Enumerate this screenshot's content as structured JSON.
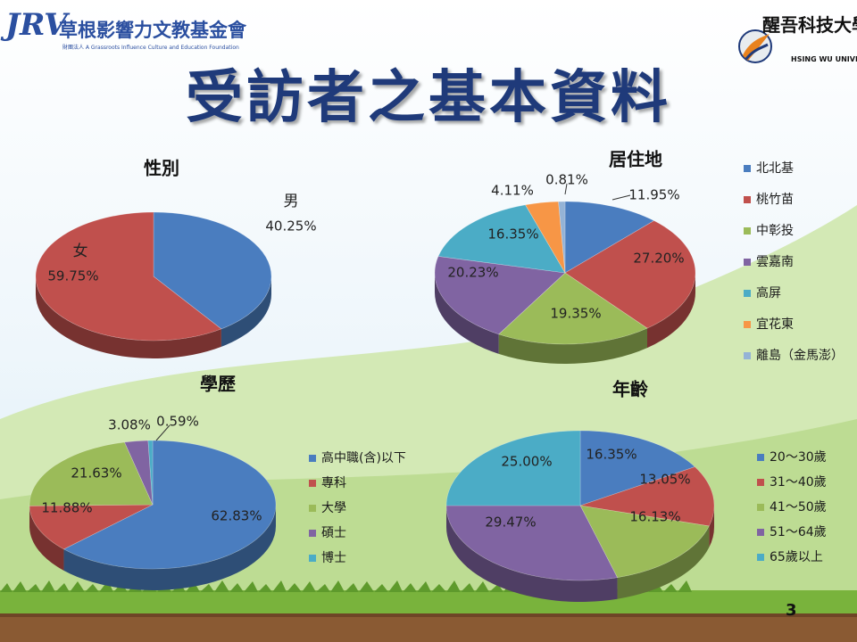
{
  "header": {
    "title": "受訪者之基本資料",
    "logo_left": {
      "mark": "JRV",
      "org_name": "草根影響力文教基金會",
      "org_name_en": "財團法人 A Grassroots Influence Culture and Education Foundation"
    },
    "logo_right": {
      "name": "醒吾科技大學",
      "name_en": "HSING WU UNIVERSITY"
    }
  },
  "page_number": "3",
  "colors": {
    "blue": "#4a7dbf",
    "red": "#c0504d",
    "green": "#9bbb59",
    "purple": "#8064a2",
    "teal": "#4bacc6",
    "orange": "#f79646",
    "light_blue": "#94b3d6"
  },
  "chart_data": [
    {
      "id": "gender",
      "type": "pie",
      "title": "性別",
      "legend": "none",
      "categories": [
        "男",
        "女"
      ],
      "values": [
        40.25,
        59.75
      ],
      "labels": [
        "40.25%",
        "59.75%"
      ],
      "colors": [
        "#4a7dbf",
        "#c0504d"
      ]
    },
    {
      "id": "residence",
      "type": "pie",
      "title": "居住地",
      "legend": "right",
      "categories": [
        "北北基",
        "桃竹苗",
        "中彰投",
        "雲嘉南",
        "高屏",
        "宜花東",
        "離島（金馬澎）"
      ],
      "values": [
        11.95,
        27.2,
        19.35,
        20.23,
        16.35,
        4.11,
        0.81
      ],
      "labels": [
        "11.95%",
        "27.20%",
        "19.35%",
        "20.23%",
        "16.35%",
        "4.11%",
        "0.81%"
      ],
      "colors": [
        "#4a7dbf",
        "#c0504d",
        "#9bbb59",
        "#8064a2",
        "#4bacc6",
        "#f79646",
        "#94b3d6"
      ]
    },
    {
      "id": "education",
      "type": "pie",
      "title": "學歷",
      "legend": "right",
      "categories": [
        "高中職(含)以下",
        "專科",
        "大學",
        "碩士",
        "博士"
      ],
      "values": [
        62.83,
        11.88,
        21.63,
        3.08,
        0.59
      ],
      "labels": [
        "62.83%",
        "11.88%",
        "21.63%",
        "3.08%",
        "0.59%"
      ],
      "colors": [
        "#4a7dbf",
        "#c0504d",
        "#9bbb59",
        "#8064a2",
        "#4bacc6"
      ]
    },
    {
      "id": "age",
      "type": "pie",
      "title": "年齡",
      "legend": "right",
      "categories": [
        "20～30歲",
        "31～40歲",
        "41～50歲",
        "51～64歲",
        "65歲以上"
      ],
      "values": [
        16.35,
        13.05,
        16.13,
        29.47,
        25.0
      ],
      "labels": [
        "16.35%",
        "13.05%",
        "16.13%",
        "29.47%",
        "25.00%"
      ],
      "colors": [
        "#4a7dbf",
        "#c0504d",
        "#9bbb59",
        "#8064a2",
        "#4bacc6"
      ]
    }
  ]
}
